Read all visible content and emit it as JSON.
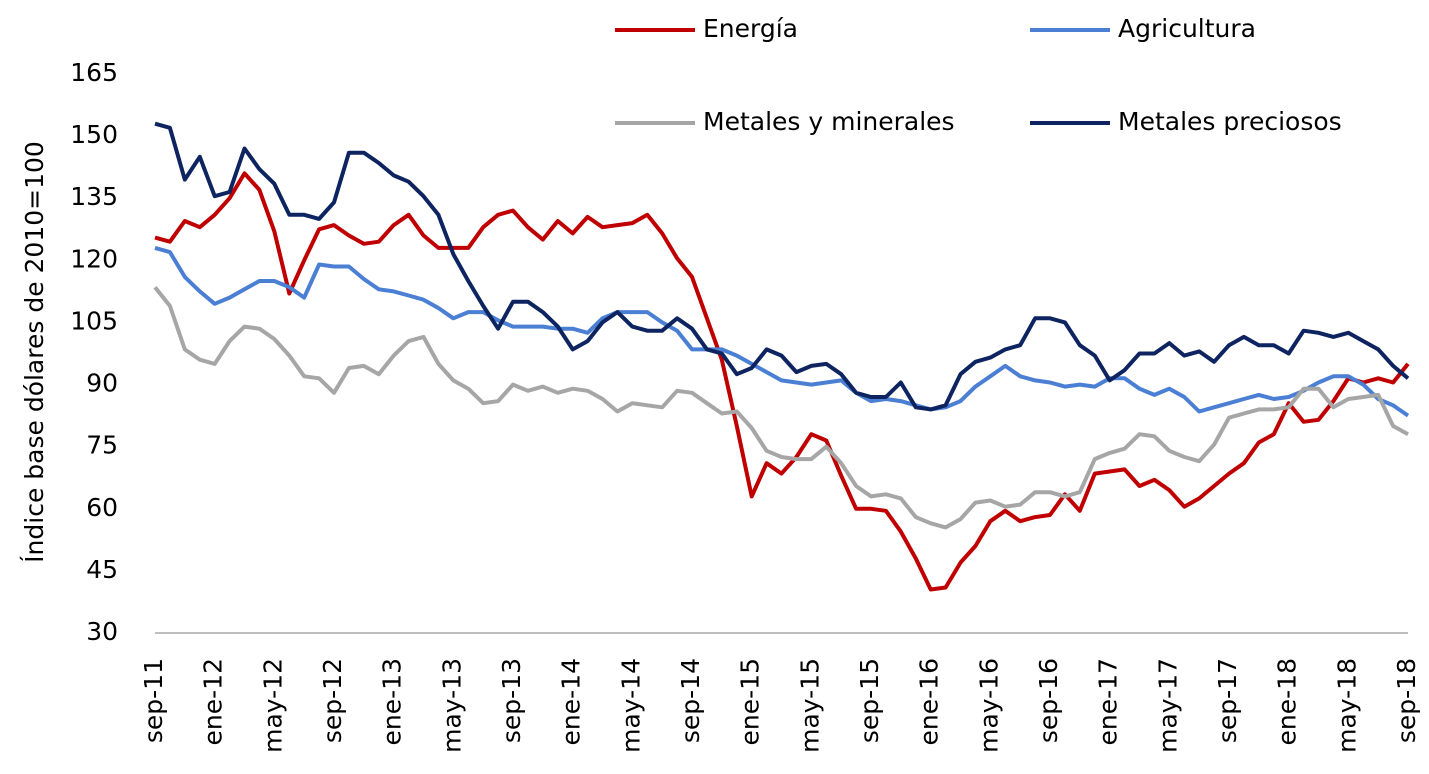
{
  "chart_data": {
    "type": "line",
    "y_label": "Índice base dólares de 2010=100",
    "categories": [
      "sep-11",
      null,
      null,
      null,
      "ene-12",
      null,
      null,
      null,
      "may-12",
      null,
      null,
      null,
      "sep-12",
      null,
      null,
      null,
      "ene-13",
      null,
      null,
      null,
      "may-13",
      null,
      null,
      null,
      "sep-13",
      null,
      null,
      null,
      "ene-14",
      null,
      null,
      null,
      "may-14",
      null,
      null,
      null,
      "sep-14",
      null,
      null,
      null,
      "ene-15",
      null,
      null,
      null,
      "may-15",
      null,
      null,
      null,
      "sep-15",
      null,
      null,
      null,
      "ene-16",
      null,
      null,
      null,
      "may-16",
      null,
      null,
      null,
      "sep-16",
      null,
      null,
      null,
      "ene-17",
      null,
      null,
      null,
      "may-17",
      null,
      null,
      null,
      "sep-17",
      null,
      null,
      null,
      "ene-18",
      null,
      null,
      null,
      "may-18",
      null,
      null,
      null,
      "sep-18"
    ],
    "series": [
      {
        "name": "Energía",
        "color": "#c00000",
        "values": [
          125.5,
          124.5,
          129.5,
          128,
          131,
          135,
          141,
          137,
          127,
          112,
          120,
          127.5,
          128.5,
          126,
          124,
          124.5,
          128.5,
          131,
          126,
          123,
          123,
          123,
          128,
          131,
          132,
          128,
          125,
          129.5,
          126.5,
          130.5,
          128,
          128.5,
          129,
          131,
          126.5,
          120.5,
          116,
          106,
          96,
          80,
          63,
          71,
          68.5,
          72.5,
          78,
          76.5,
          68,
          60,
          60,
          59.5,
          54.5,
          48,
          40.5,
          41,
          47,
          51,
          57,
          59.5,
          57,
          58,
          58.5,
          63.5,
          59.5,
          68.5,
          69,
          69.5,
          65.5,
          67,
          64.5,
          60.5,
          62.5,
          65.5,
          68.5,
          71,
          76,
          78,
          85.5,
          81,
          81.5,
          86,
          91.5,
          90.5,
          91.5,
          90.5,
          95
        ]
      },
      {
        "name": "Agricultura",
        "color": "#4a7fd4",
        "values": [
          123,
          122,
          116,
          112.5,
          109.5,
          111,
          113,
          115,
          115,
          113.5,
          111,
          119,
          118.5,
          118.5,
          115.5,
          113,
          112.5,
          111.5,
          110.5,
          108.5,
          106,
          107.5,
          107.5,
          105.5,
          104,
          104,
          104,
          103.5,
          103.5,
          102.5,
          106,
          107.5,
          107.5,
          107.5,
          105,
          103,
          98.5,
          98.5,
          98.5,
          97,
          95,
          93,
          91,
          90.5,
          90,
          90.5,
          91,
          88,
          86,
          86.5,
          86,
          85,
          84,
          84.5,
          86,
          89.5,
          92,
          94.5,
          92,
          91,
          90.5,
          89.5,
          90,
          89.5,
          91.5,
          91.5,
          89,
          87.5,
          89,
          87,
          83.5,
          84.5,
          85.5,
          86.5,
          87.5,
          86.5,
          87,
          88.5,
          90.5,
          92,
          92,
          90,
          86.5,
          85,
          82.5
        ]
      },
      {
        "name": "Metales y minerales",
        "color": "#a6a6a6",
        "values": [
          113.5,
          109,
          98.5,
          96,
          95,
          100.5,
          104,
          103.5,
          101,
          97,
          92,
          91.5,
          88,
          94,
          94.5,
          92.5,
          97,
          100.5,
          101.5,
          95,
          91,
          89,
          85.5,
          86,
          90,
          88.5,
          89.5,
          88,
          89,
          88.5,
          86.5,
          83.5,
          85.5,
          85,
          84.5,
          88.5,
          88,
          85.5,
          83,
          83.5,
          79.5,
          74,
          72.5,
          72,
          72,
          75,
          71,
          65.5,
          63,
          63.5,
          62.5,
          58,
          56.5,
          55.5,
          57.5,
          61.5,
          62,
          60.5,
          61,
          64,
          64,
          63,
          64,
          72,
          73.5,
          74.5,
          78,
          77.5,
          74,
          72.5,
          71.5,
          75.5,
          82,
          83,
          84,
          84,
          84.5,
          89,
          89,
          84.5,
          86.5,
          87,
          87.5,
          80,
          78
        ]
      },
      {
        "name": "Metales preciosos",
        "color": "#0d2461",
        "values": [
          153,
          152,
          139.5,
          145,
          135.5,
          136.5,
          147,
          142,
          138.5,
          131,
          131,
          130,
          134,
          146,
          146,
          143.5,
          140.5,
          139,
          135.5,
          131,
          121.5,
          115,
          109,
          103.5,
          110,
          110,
          107.5,
          104,
          98.5,
          100.5,
          105,
          107.5,
          104,
          103,
          103,
          106,
          103.5,
          98.5,
          97.5,
          92.5,
          94,
          98.5,
          97,
          93,
          94.5,
          95,
          92.5,
          88,
          87,
          87,
          90.5,
          84.5,
          84,
          85,
          92.5,
          95.5,
          96.5,
          98.5,
          99.5,
          106,
          106,
          105,
          99.5,
          97,
          91,
          93.5,
          97.5,
          97.5,
          100,
          97,
          98,
          95.5,
          99.5,
          101.5,
          99.5,
          99.5,
          97.5,
          103,
          102.5,
          101.5,
          102.5,
          100.5,
          98.5,
          94.5,
          91.5
        ]
      }
    ],
    "ylim": [
      30,
      165
    ],
    "yticks": [
      30,
      45,
      60,
      75,
      90,
      105,
      120,
      135,
      150,
      165
    ]
  }
}
